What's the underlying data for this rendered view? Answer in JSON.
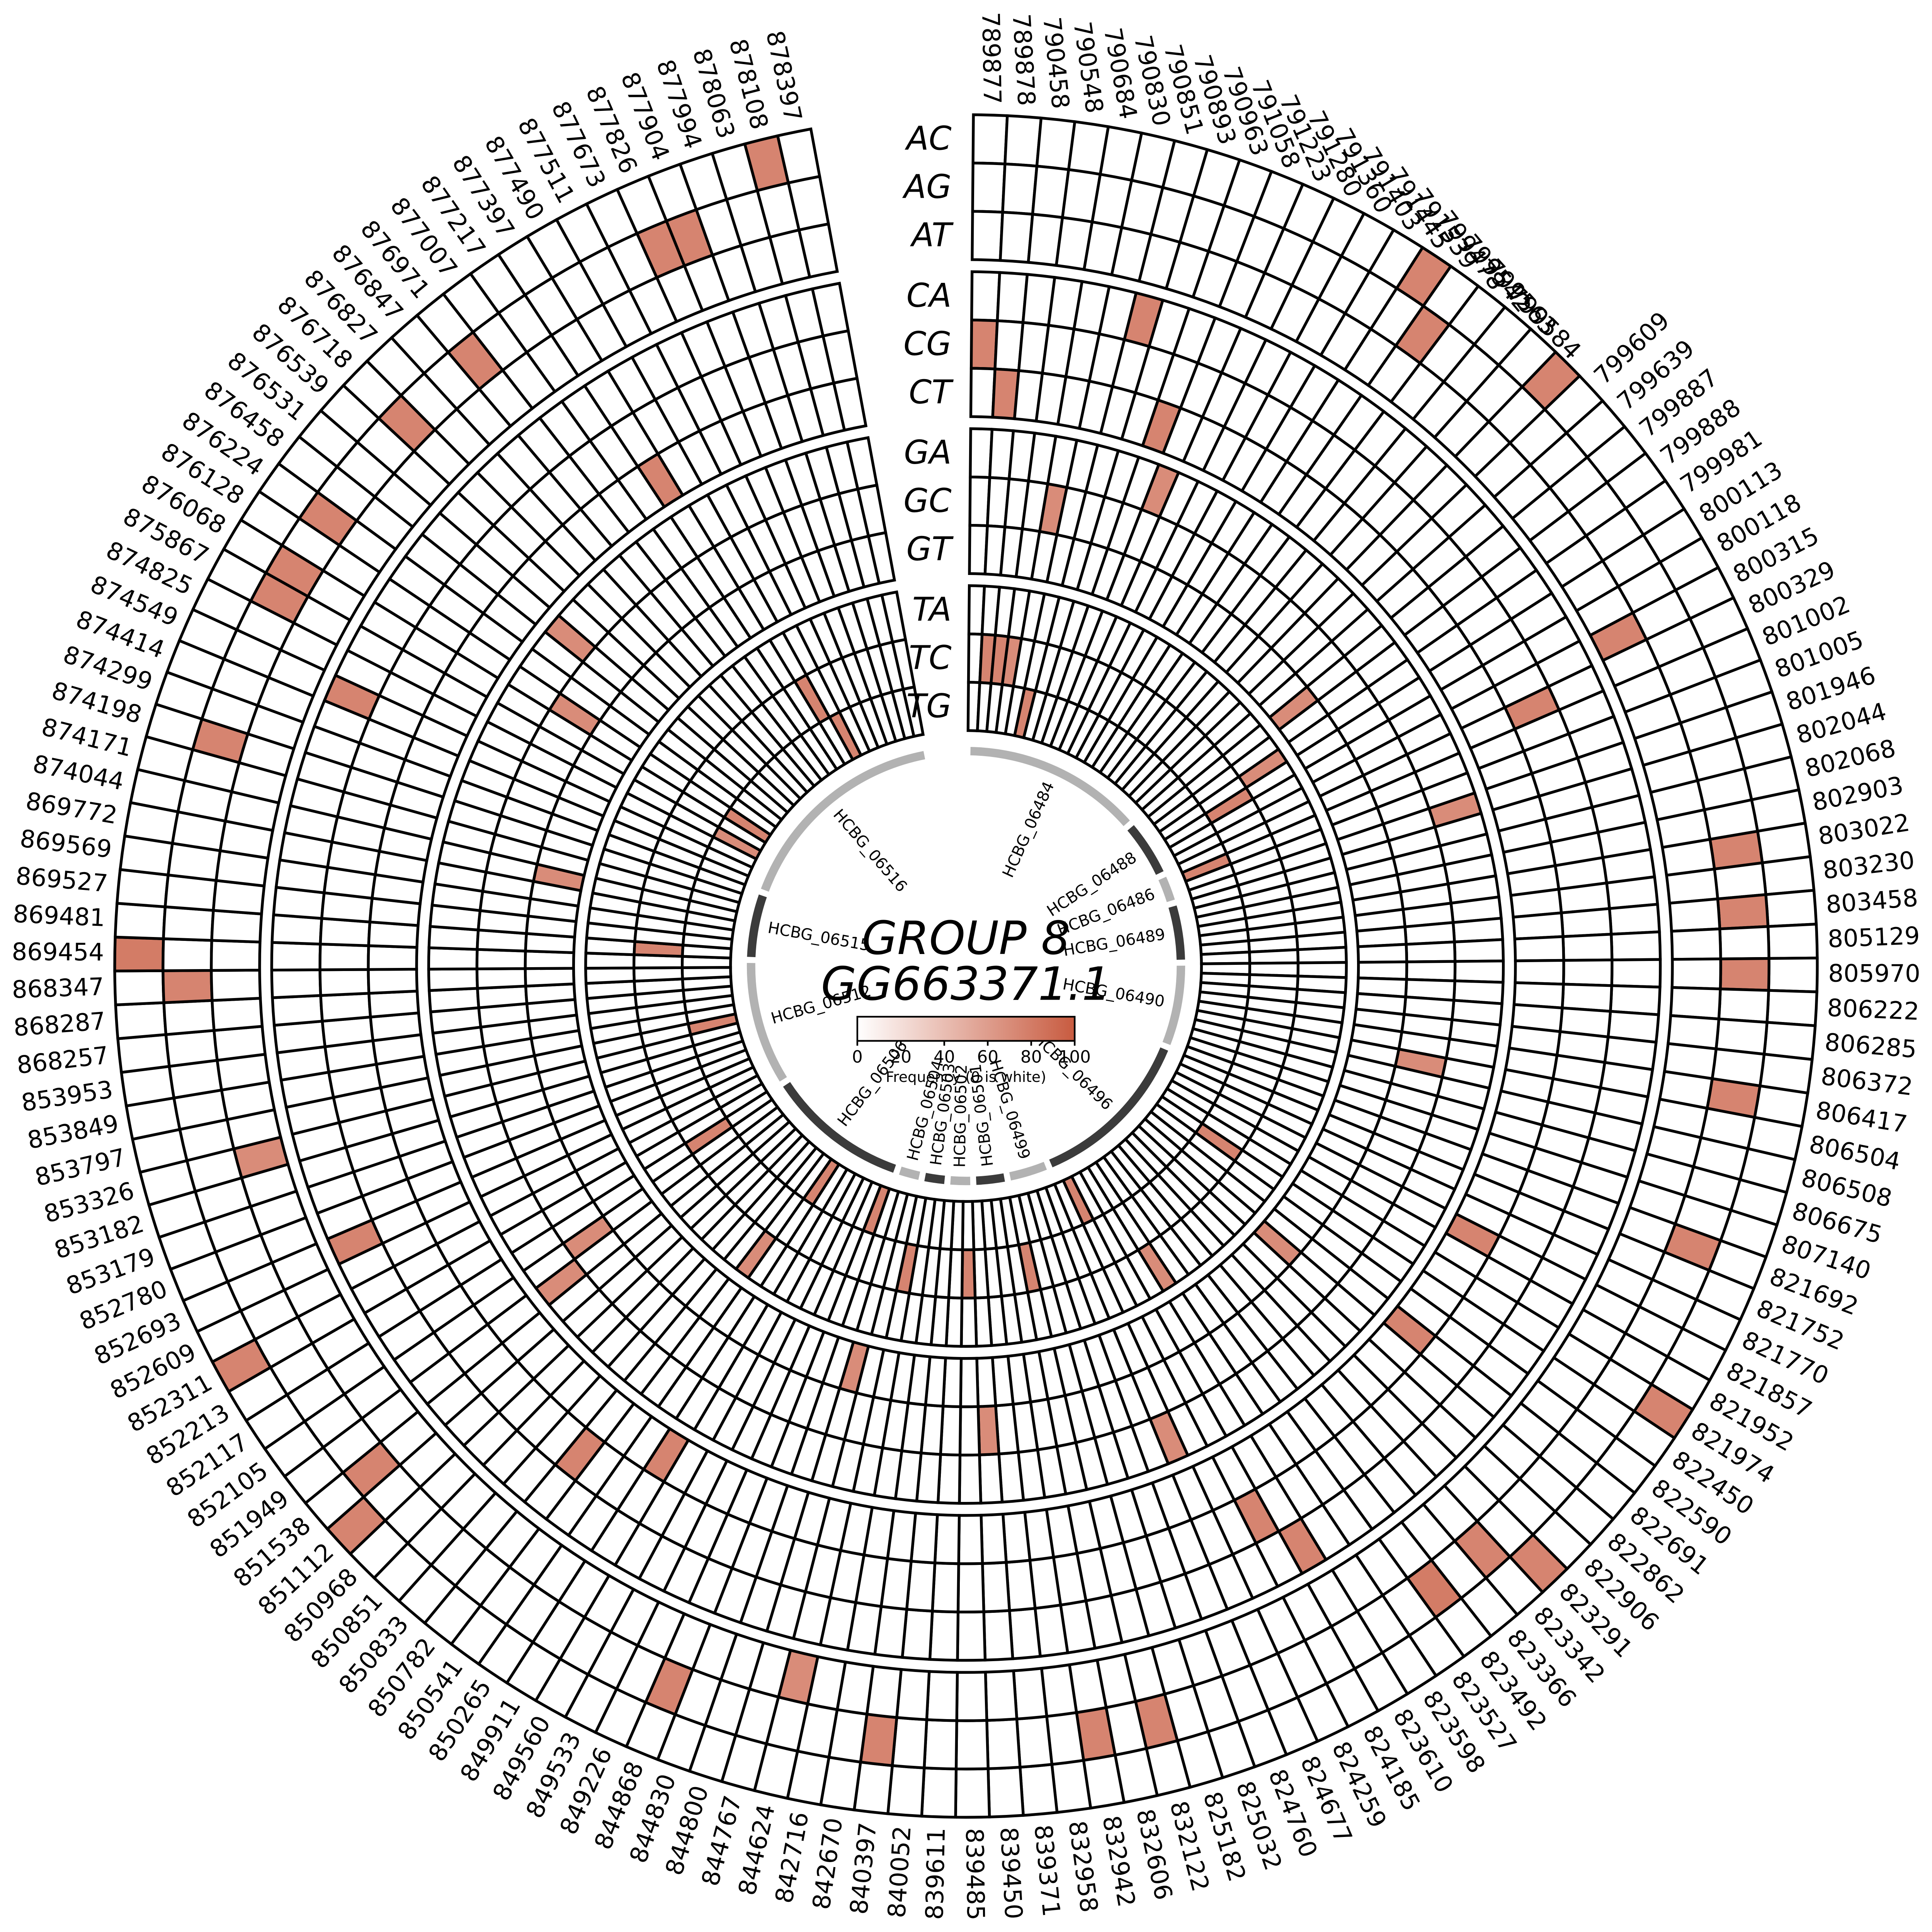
{
  "title": {
    "line1": "GROUP 8",
    "line2": "GG663371.1"
  },
  "legend": {
    "caption": "Frequency (0 is white)",
    "ticks": [
      0,
      20,
      40,
      60,
      80,
      100
    ],
    "min_color": "#ffffff",
    "max_color": "#c85b40"
  },
  "colors": {
    "cell_fill_empty": "#ffffff",
    "cell_stroke": "#000000",
    "gene_arc_light": "#b2b2b2",
    "gene_arc_dark": "#3b3b3b"
  },
  "chart_data": {
    "type": "heatmap",
    "layout": "circular",
    "rings": [
      "AC",
      "AG",
      "AT",
      "CA",
      "CG",
      "CT",
      "GA",
      "GC",
      "GT",
      "TA",
      "TC",
      "TG"
    ],
    "ring_groups": [
      [
        "AC",
        "AG",
        "AT"
      ],
      [
        "CA",
        "CG",
        "CT"
      ],
      [
        "GA",
        "GC",
        "GT"
      ],
      [
        "TA",
        "TC",
        "TG"
      ]
    ],
    "positions": [
      "789877",
      "789878",
      "790458",
      "790548",
      "790684",
      "790830",
      "790851",
      "790893",
      "790963",
      "791058",
      "791223",
      "791280",
      "791360",
      "791403",
      "791445",
      "791539",
      "799478",
      "799542",
      "799563",
      "799584",
      "799609",
      "799639",
      "799887",
      "799888",
      "799981",
      "800113",
      "800118",
      "800315",
      "800329",
      "801002",
      "801005",
      "801946",
      "802044",
      "802068",
      "802903",
      "803022",
      "803230",
      "803458",
      "805129",
      "805970",
      "806222",
      "806285",
      "806372",
      "806417",
      "806504",
      "806508",
      "806675",
      "807140",
      "821692",
      "821752",
      "821770",
      "821857",
      "821952",
      "821974",
      "822450",
      "822590",
      "822691",
      "822862",
      "822906",
      "823291",
      "823342",
      "823366",
      "823492",
      "823527",
      "823598",
      "823610",
      "824185",
      "824259",
      "824677",
      "824760",
      "825032",
      "825182",
      "832122",
      "832606",
      "832942",
      "832958",
      "839371",
      "839450",
      "839485",
      "839611",
      "840052",
      "840397",
      "842670",
      "842716",
      "844624",
      "844767",
      "844800",
      "844830",
      "844868",
      "849226",
      "849533",
      "849560",
      "849911",
      "850265",
      "850541",
      "850782",
      "850833",
      "850851",
      "850968",
      "851112",
      "851538",
      "851949",
      "852105",
      "852117",
      "852213",
      "852311",
      "852609",
      "852693",
      "852780",
      "853179",
      "853182",
      "853326",
      "853797",
      "853849",
      "853953",
      "868257",
      "868287",
      "868347",
      "869454",
      "869481",
      "869527",
      "869569",
      "869772",
      "874044",
      "874171",
      "874198",
      "874299",
      "874414",
      "874549",
      "874825",
      "875867",
      "876068",
      "876128",
      "876224",
      "876458",
      "876531",
      "876539",
      "876718",
      "876827",
      "876847",
      "876971",
      "877007",
      "877217",
      "877397",
      "877490",
      "877511",
      "877673",
      "877826",
      "877904",
      "877994",
      "878063",
      "878108",
      "878397"
    ],
    "filled_cells": [
      {
        "ring": "CG",
        "position": "789877",
        "value": 75
      },
      {
        "ring": "CT",
        "position": "789878",
        "value": 75
      },
      {
        "ring": "TC",
        "position": "789878",
        "value": 75
      },
      {
        "ring": "TC",
        "position": "790458",
        "value": 75
      },
      {
        "ring": "TC",
        "position": "790548",
        "value": 70
      },
      {
        "ring": "CA",
        "position": "790851",
        "value": 75
      },
      {
        "ring": "CT",
        "position": "790963",
        "value": 75
      },
      {
        "ring": "GA",
        "position": "791058",
        "value": 70
      },
      {
        "ring": "GC",
        "position": "790684",
        "value": 70
      },
      {
        "ring": "TG",
        "position": "790830",
        "value": 75
      },
      {
        "ring": "AC",
        "position": "791445",
        "value": 75
      },
      {
        "ring": "AG",
        "position": "791539",
        "value": 75
      },
      {
        "ring": "AC",
        "position": "799584",
        "value": 75
      },
      {
        "ring": "GT",
        "position": "799887",
        "value": 70
      },
      {
        "ring": "TA",
        "position": "799981",
        "value": 70
      },
      {
        "ring": "TC",
        "position": "800113",
        "value": 75
      },
      {
        "ring": "AT",
        "position": "800315",
        "value": 75
      },
      {
        "ring": "CG",
        "position": "800329",
        "value": 75
      },
      {
        "ring": "TG",
        "position": "801002",
        "value": 75
      },
      {
        "ring": "GA",
        "position": "801946",
        "value": 70
      },
      {
        "ring": "AG",
        "position": "803022",
        "value": 75
      },
      {
        "ring": "AG",
        "position": "803458",
        "value": 75
      },
      {
        "ring": "AG",
        "position": "805970",
        "value": 75
      },
      {
        "ring": "AG",
        "position": "806417",
        "value": 75
      },
      {
        "ring": "GC",
        "position": "806504",
        "value": 70
      },
      {
        "ring": "AG",
        "position": "821692",
        "value": 75
      },
      {
        "ring": "CT",
        "position": "821857",
        "value": 75
      },
      {
        "ring": "AC",
        "position": "821974",
        "value": 75
      },
      {
        "ring": "TC",
        "position": "822450",
        "value": 75
      },
      {
        "ring": "CT",
        "position": "822691",
        "value": 75
      },
      {
        "ring": "GT",
        "position": "822862",
        "value": 70
      },
      {
        "ring": "AC",
        "position": "823291",
        "value": 75
      },
      {
        "ring": "AG",
        "position": "823342",
        "value": 75
      },
      {
        "ring": "AG",
        "position": "823492",
        "value": 80
      },
      {
        "ring": "TA",
        "position": "823598",
        "value": 70
      },
      {
        "ring": "CA",
        "position": "823610",
        "value": 75
      },
      {
        "ring": "CG",
        "position": "824185",
        "value": 75
      },
      {
        "ring": "TG",
        "position": "824259",
        "value": 75
      },
      {
        "ring": "GA",
        "position": "824677",
        "value": 70
      },
      {
        "ring": "AG",
        "position": "832122",
        "value": 75
      },
      {
        "ring": "TC",
        "position": "832606",
        "value": 75
      },
      {
        "ring": "AG",
        "position": "832942",
        "value": 75
      },
      {
        "ring": "GC",
        "position": "839450",
        "value": 70
      },
      {
        "ring": "TC",
        "position": "839485",
        "value": 75
      },
      {
        "ring": "AG",
        "position": "840397",
        "value": 75
      },
      {
        "ring": "TC",
        "position": "842716",
        "value": 75
      },
      {
        "ring": "AT",
        "position": "844624",
        "value": 70
      },
      {
        "ring": "GT",
        "position": "844767",
        "value": 70
      },
      {
        "ring": "TG",
        "position": "844830",
        "value": 75
      },
      {
        "ring": "AG",
        "position": "844868",
        "value": 75
      },
      {
        "ring": "CT",
        "position": "849911",
        "value": 75
      },
      {
        "ring": "TG",
        "position": "850265",
        "value": 75
      },
      {
        "ring": "TA",
        "position": "850541",
        "value": 70
      },
      {
        "ring": "CG",
        "position": "850782",
        "value": 75
      },
      {
        "ring": "AC",
        "position": "851112",
        "value": 75
      },
      {
        "ring": "AG",
        "position": "851538",
        "value": 75
      },
      {
        "ring": "GA",
        "position": "851949",
        "value": 70
      },
      {
        "ring": "GC",
        "position": "852105",
        "value": 70
      },
      {
        "ring": "TC",
        "position": "852117",
        "value": 75
      },
      {
        "ring": "AC",
        "position": "852311",
        "value": 75
      },
      {
        "ring": "CA",
        "position": "852693",
        "value": 75
      },
      {
        "ring": "AT",
        "position": "853326",
        "value": 70
      },
      {
        "ring": "TG",
        "position": "853797",
        "value": 75
      },
      {
        "ring": "AG",
        "position": "868347",
        "value": 75
      },
      {
        "ring": "AC",
        "position": "869454",
        "value": 80
      },
      {
        "ring": "TC",
        "position": "869481",
        "value": 75
      },
      {
        "ring": "GT",
        "position": "874044",
        "value": 70
      },
      {
        "ring": "AG",
        "position": "874198",
        "value": 75
      },
      {
        "ring": "CA",
        "position": "874549",
        "value": 75
      },
      {
        "ring": "AG",
        "position": "875867",
        "value": 75
      },
      {
        "ring": "TG",
        "position": "875867",
        "value": 70
      },
      {
        "ring": "AG",
        "position": "876068",
        "value": 75
      },
      {
        "ring": "GC",
        "position": "876128",
        "value": 70
      },
      {
        "ring": "TG",
        "position": "876128",
        "value": 75
      },
      {
        "ring": "AG",
        "position": "876224",
        "value": 75
      },
      {
        "ring": "GA",
        "position": "876531",
        "value": 70
      },
      {
        "ring": "AG",
        "position": "876718",
        "value": 75
      },
      {
        "ring": "AG",
        "position": "876971",
        "value": 75
      },
      {
        "ring": "CT",
        "position": "877397",
        "value": 75
      },
      {
        "ring": "TC",
        "position": "877490",
        "value": 75
      },
      {
        "ring": "TG",
        "position": "877511",
        "value": 75
      },
      {
        "ring": "AG",
        "position": "877826",
        "value": 75
      },
      {
        "ring": "AG",
        "position": "877904",
        "value": 75
      },
      {
        "ring": "AC",
        "position": "878108",
        "value": 75
      }
    ],
    "genes": [
      {
        "name": "HCBG_06484",
        "start_col": 0.3,
        "end_col": 21.0,
        "shade": "light"
      },
      {
        "name": "HCBG_06488",
        "start_col": 21.7,
        "end_col": 28.0,
        "shade": "dark"
      },
      {
        "name": "HCBG_06486",
        "start_col": 28.7,
        "end_col": 31.5,
        "shade": "light"
      },
      {
        "name": "HCBG_06489",
        "start_col": 32.2,
        "end_col": 38.5,
        "shade": "dark"
      },
      {
        "name": "HCBG_06490",
        "start_col": 39.2,
        "end_col": 48.5,
        "shade": "light"
      },
      {
        "name": "HCBG_06496",
        "start_col": 49.2,
        "end_col": 68.5,
        "shade": "dark"
      },
      {
        "name": "HCBG_06499",
        "start_col": 69.2,
        "end_col": 73.5,
        "shade": "light"
      },
      {
        "name": "HCBG_06501",
        "start_col": 74.2,
        "end_col": 77.5,
        "shade": "dark"
      },
      {
        "name": "HCBG_06502",
        "start_col": 78.2,
        "end_col": 80.5,
        "shade": "light"
      },
      {
        "name": "HCBG_06503",
        "start_col": 81.2,
        "end_col": 83.5,
        "shade": "dark"
      },
      {
        "name": "HCBG_06504",
        "start_col": 84.2,
        "end_col": 86.5,
        "shade": "light"
      },
      {
        "name": "HCBG_06506",
        "start_col": 87.2,
        "end_col": 103.5,
        "shade": "dark"
      },
      {
        "name": "HCBG_06512",
        "start_col": 104.2,
        "end_col": 118.5,
        "shade": "light"
      },
      {
        "name": "HCBG_06515",
        "start_col": 119.2,
        "end_col": 126.5,
        "shade": "dark"
      },
      {
        "name": "HCBG_06516",
        "start_col": 127.2,
        "end_col": 152.7,
        "shade": "light"
      }
    ]
  }
}
